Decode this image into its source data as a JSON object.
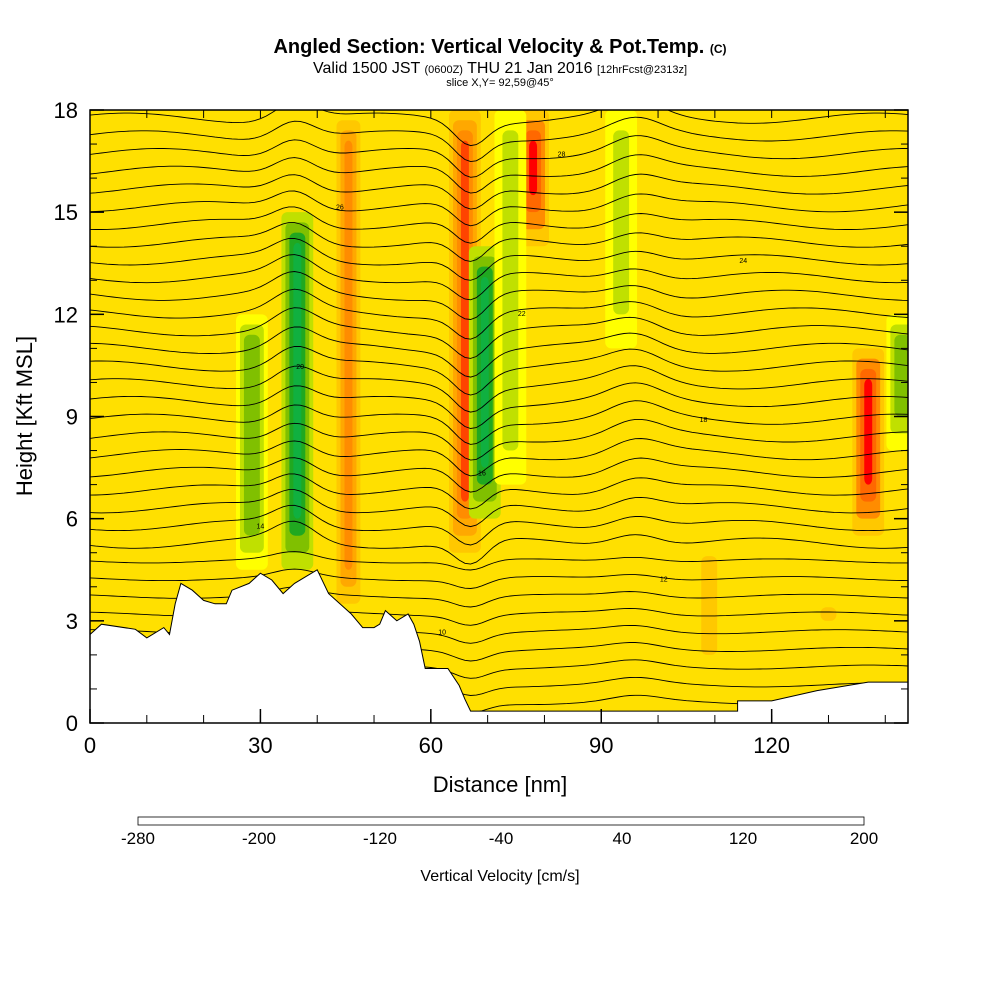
{
  "header": {
    "title": "Angled Section: Vertical Velocity & Pot.Temp.",
    "title_unit": "(C)",
    "valid_prefix": "Valid 1500 JST",
    "valid_z": "(0600Z)",
    "valid_date": "THU 21 Jan 2016",
    "forecast": "[12hrFcst@2313z]",
    "slice": "slice X,Y= 92,59@45°"
  },
  "chart_data": {
    "type": "heatmap",
    "xlabel": "Distance [nm]",
    "ylabel": "Height [Kft MSL]",
    "xlim": [
      0,
      144
    ],
    "ylim": [
      0,
      18
    ],
    "x_ticks": [
      0,
      30,
      60,
      90,
      120
    ],
    "y_ticks": [
      0,
      3,
      6,
      9,
      12,
      15,
      18
    ],
    "background_velocity": 0,
    "updraft_bands": [
      {
        "x": 45.5,
        "ylo": 3,
        "yhi": 18,
        "value": 60
      },
      {
        "x": 66,
        "ylo": 5,
        "yhi": 18,
        "value": 100
      },
      {
        "x": 78,
        "ylo": 14,
        "yhi": 18,
        "value": 130
      },
      {
        "x": 137,
        "ylo": 5.5,
        "yhi": 11,
        "value": 130
      },
      {
        "x": 109,
        "ylo": 1,
        "yhi": 5.5,
        "value": 30
      },
      {
        "x": 130,
        "ylo": 2,
        "yhi": 4,
        "value": 30
      }
    ],
    "downdraft_bands": [
      {
        "x": 36.5,
        "ylo": 4.5,
        "yhi": 15,
        "value": -110
      },
      {
        "x": 28.5,
        "ylo": 4.5,
        "yhi": 12,
        "value": -60
      },
      {
        "x": 69.5,
        "ylo": 6,
        "yhi": 14,
        "value": -120
      },
      {
        "x": 74,
        "ylo": 7,
        "yhi": 18,
        "value": -40
      },
      {
        "x": 93.5,
        "ylo": 11,
        "yhi": 18,
        "value": -40
      },
      {
        "x": 143,
        "ylo": 8,
        "yhi": 12,
        "value": -60
      }
    ],
    "terrain_top": [
      [
        0,
        2.6
      ],
      [
        2,
        2.9
      ],
      [
        8,
        2.75
      ],
      [
        10,
        2.5
      ],
      [
        13,
        2.8
      ],
      [
        14,
        2.6
      ],
      [
        15,
        3.5
      ],
      [
        16,
        4.1
      ],
      [
        18,
        3.9
      ],
      [
        20,
        3.6
      ],
      [
        22,
        3.5
      ],
      [
        24,
        3.5
      ],
      [
        25,
        3.9
      ],
      [
        28,
        4.1
      ],
      [
        30,
        4.4
      ],
      [
        32,
        4.2
      ],
      [
        34,
        3.8
      ],
      [
        36,
        4.1
      ],
      [
        38,
        4.3
      ],
      [
        40,
        4.5
      ],
      [
        42,
        3.8
      ],
      [
        44,
        3.5
      ],
      [
        46,
        3.2
      ],
      [
        47,
        3.0
      ],
      [
        48,
        2.8
      ],
      [
        50,
        2.8
      ],
      [
        51,
        2.9
      ],
      [
        52,
        3.3
      ],
      [
        54,
        3.0
      ],
      [
        56,
        3.2
      ],
      [
        57,
        2.9
      ],
      [
        58,
        2.4
      ],
      [
        59,
        1.6
      ],
      [
        63,
        1.6
      ],
      [
        65,
        1.1
      ],
      [
        66,
        0.7
      ],
      [
        67,
        0.35
      ],
      [
        114,
        0.35
      ],
      [
        114,
        0.65
      ],
      [
        120,
        0.65
      ],
      [
        128,
        0.95
      ],
      [
        137,
        1.2
      ],
      [
        144,
        1.2
      ]
    ],
    "potential_temperature_labels": [
      "8",
      "10",
      "12",
      "14",
      "16",
      "18",
      "20",
      "22",
      "24",
      "26",
      "28",
      "30"
    ],
    "colorbar": {
      "label": "Vertical Velocity [cm/s]",
      "min": -280,
      "max": 200,
      "step": 20,
      "tick_labels": [
        "-280",
        "-200",
        "-120",
        "-40",
        "40",
        "120",
        "200"
      ],
      "colors": [
        "#0000ff",
        "#0050ff",
        "#0080ff",
        "#00aaff",
        "#00d4ff",
        "#00ffff",
        "#00e0c0",
        "#00c880",
        "#10b040",
        "#20a820",
        "#50b020",
        "#80c000",
        "#c0e000",
        "#ffff00",
        "#ffe000",
        "#ffc800",
        "#ffa800",
        "#ff8c00",
        "#ff6800",
        "#ff4400",
        "#ff0000",
        "#e00030",
        "#c00060",
        "#900090"
      ]
    }
  }
}
